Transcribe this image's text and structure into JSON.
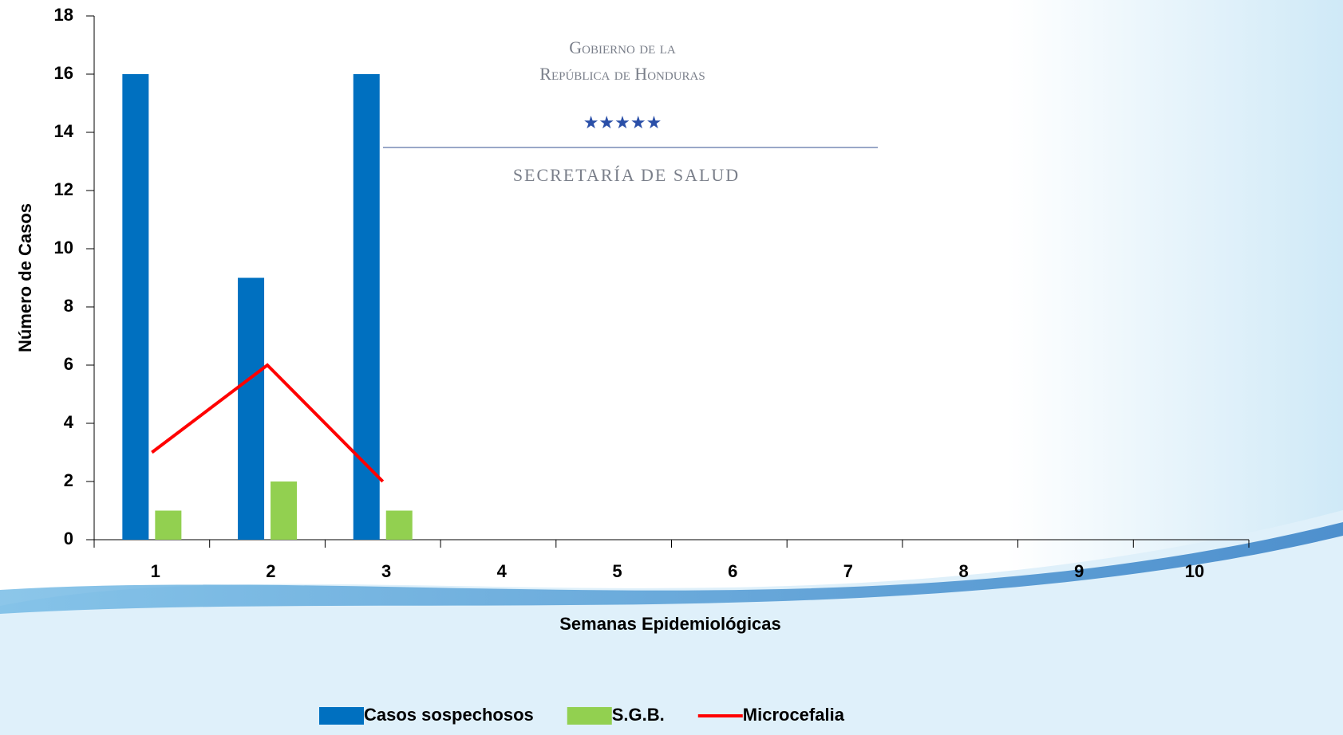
{
  "logo": {
    "line1": "Gobierno de la",
    "line2": "República de Honduras",
    "line3": "Secretaría de Salud"
  },
  "chart_data": {
    "type": "bar",
    "x_label": "Semanas Epidemiológicas",
    "y_label": "Número de Casos",
    "categories": [
      "1",
      "2",
      "3",
      "4",
      "5",
      "6",
      "7",
      "8",
      "9",
      "10"
    ],
    "series": [
      {
        "name": "Casos sospechosos",
        "type": "bar",
        "color": "#0070c0",
        "values": [
          16,
          9,
          16,
          null,
          null,
          null,
          null,
          null,
          null,
          null
        ]
      },
      {
        "name": "S.G.B.",
        "type": "bar",
        "color": "#92d050",
        "values": [
          1,
          2,
          1,
          null,
          null,
          null,
          null,
          null,
          null,
          null
        ]
      },
      {
        "name": "Microcefalia",
        "type": "line",
        "color": "#ff0000",
        "values": [
          3,
          6,
          2,
          null,
          null,
          null,
          null,
          null,
          null,
          null
        ]
      }
    ],
    "ylim": [
      0,
      18
    ],
    "yticks": [
      0,
      2,
      4,
      6,
      8,
      10,
      12,
      14,
      16,
      18
    ],
    "grid": false,
    "legend": "bottom"
  }
}
